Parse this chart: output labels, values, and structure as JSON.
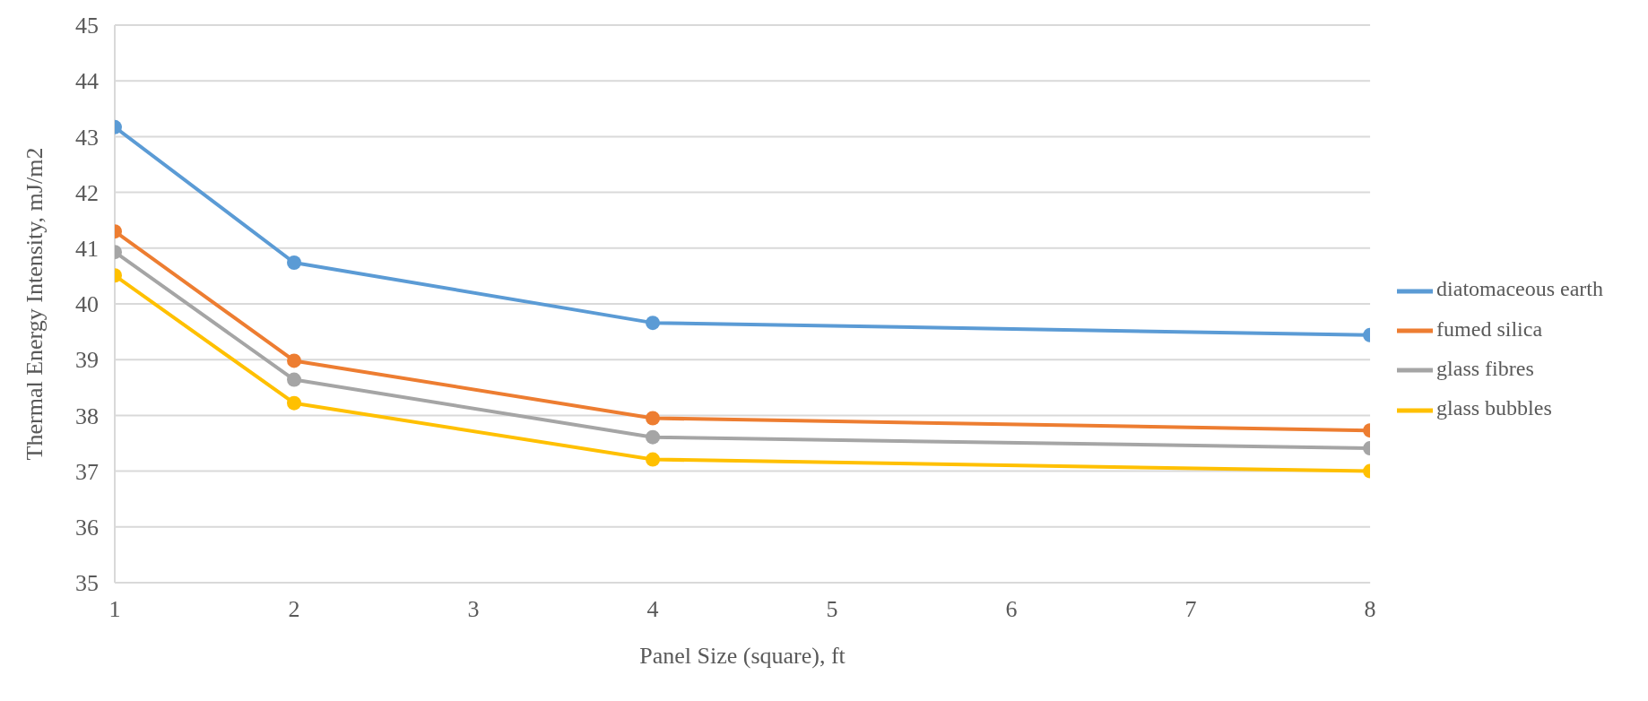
{
  "chart_data": {
    "type": "line",
    "xlabel": "Panel Size (square), ft",
    "ylabel": "Thermal Energy Intensity, mJ/m2",
    "x": [
      1,
      2,
      4,
      8
    ],
    "series": [
      {
        "name": "diatomaceous earth",
        "color": "#5b9bd5",
        "values": [
          43.17,
          40.74,
          39.66,
          39.44
        ]
      },
      {
        "name": "fumed silica",
        "color": "#ed7d31",
        "values": [
          41.3,
          38.98,
          37.95,
          37.73
        ]
      },
      {
        "name": "glass fibres",
        "color": "#a5a5a5",
        "values": [
          40.93,
          38.64,
          37.61,
          37.41
        ]
      },
      {
        "name": "glass bubbles",
        "color": "#ffc000",
        "values": [
          40.51,
          38.22,
          37.21,
          37.0
        ]
      }
    ],
    "xlim": [
      1,
      8
    ],
    "xticks": [
      1,
      2,
      3,
      4,
      5,
      6,
      7,
      8
    ],
    "ylim": [
      35,
      45
    ],
    "yticks": [
      35,
      36,
      37,
      38,
      39,
      40,
      41,
      42,
      43,
      44,
      45
    ],
    "grid": "y",
    "legend": "right",
    "marker": "circle",
    "line_style": "solid"
  }
}
